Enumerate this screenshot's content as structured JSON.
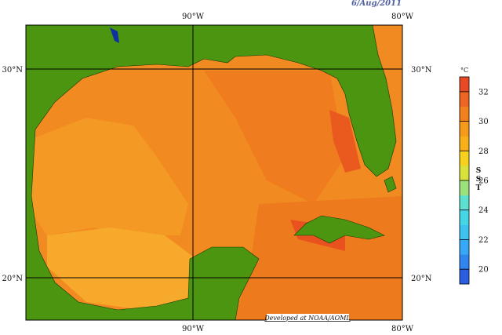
{
  "header": {
    "date": "6/Aug/2011"
  },
  "map": {
    "lon_labels": [
      "90°W",
      "80°W"
    ],
    "lat_labels": [
      "30°N",
      "20°N"
    ],
    "credit": "Developed at NOAA/AOML"
  },
  "colorbar": {
    "unit": "°C",
    "label": [
      "S",
      "S",
      "T"
    ],
    "range": [
      19,
      33
    ],
    "ticks": [
      20,
      22,
      24,
      26,
      28,
      30,
      32
    ],
    "colors": [
      "#2a5de0",
      "#2f86f0",
      "#37a8f5",
      "#3cc3f0",
      "#45d6e6",
      "#5ee0d0",
      "#9be27a",
      "#d8e23a",
      "#f6d21e",
      "#f7b018",
      "#f59a1a",
      "#f2801c",
      "#ee6422",
      "#e84a26"
    ]
  }
}
